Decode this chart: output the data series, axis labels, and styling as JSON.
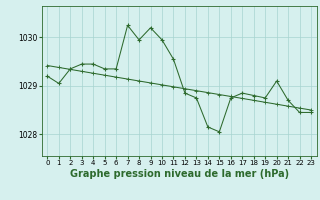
{
  "x": [
    0,
    1,
    2,
    3,
    4,
    5,
    6,
    7,
    8,
    9,
    10,
    11,
    12,
    13,
    14,
    15,
    16,
    17,
    18,
    19,
    20,
    21,
    22,
    23
  ],
  "y_main": [
    1029.2,
    1029.05,
    1029.35,
    1029.45,
    1029.45,
    1029.35,
    1029.35,
    1030.25,
    1029.95,
    1030.2,
    1029.95,
    1029.55,
    1028.85,
    1028.75,
    1028.15,
    1028.05,
    1028.75,
    1028.85,
    1028.8,
    1028.75,
    1029.1,
    1028.7,
    1028.45,
    1028.45
  ],
  "y_trend": [
    1029.42,
    1029.38,
    1029.34,
    1029.3,
    1029.26,
    1029.22,
    1029.18,
    1029.14,
    1029.1,
    1029.06,
    1029.02,
    1028.98,
    1028.94,
    1028.9,
    1028.86,
    1028.82,
    1028.78,
    1028.74,
    1028.7,
    1028.66,
    1028.62,
    1028.58,
    1028.54,
    1028.5
  ],
  "line_color": "#2d6a2d",
  "marker_color": "#2d6a2d",
  "bg_color": "#d6f0ee",
  "grid_color": "#a8d4d0",
  "title": "Graphe pression niveau de la mer (hPa)",
  "xlabel_ticks": [
    "0",
    "1",
    "2",
    "3",
    "4",
    "5",
    "6",
    "7",
    "8",
    "9",
    "10",
    "11",
    "12",
    "13",
    "14",
    "15",
    "16",
    "17",
    "18",
    "19",
    "20",
    "21",
    "22",
    "23"
  ],
  "yticks": [
    1028,
    1029,
    1030
  ],
  "ylim": [
    1027.55,
    1030.65
  ],
  "xlim": [
    -0.5,
    23.5
  ],
  "title_fontsize": 7.0,
  "tick_fontsize": 5.5
}
